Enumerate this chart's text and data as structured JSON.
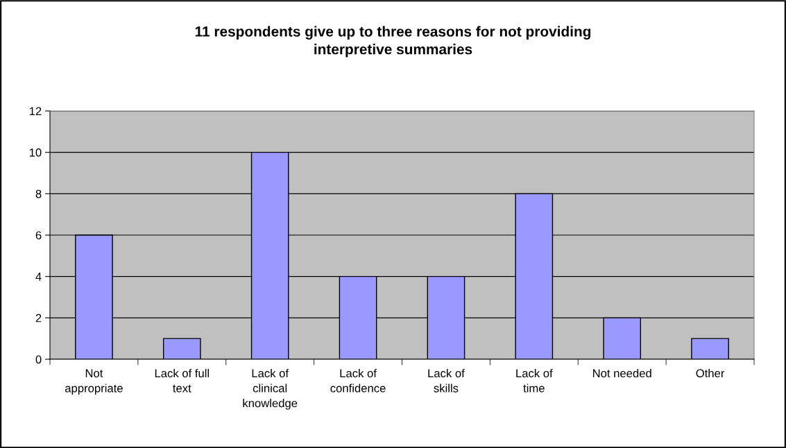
{
  "chart_data": {
    "type": "bar",
    "title": "11 respondents give up to three reasons for not providing\ninterpretive summaries",
    "categories": [
      "Not\nappropriate",
      "Lack of full\ntext",
      "Lack of\nclinical\nknowledge",
      "Lack of\nconfidence",
      "Lack of\nskills",
      "Lack of\ntime",
      "Not needed",
      "Other"
    ],
    "values": [
      6,
      1,
      10,
      4,
      4,
      8,
      2,
      1
    ],
    "color": "#9999ff",
    "ylim": [
      0,
      12
    ],
    "yticks": [
      0,
      2,
      4,
      6,
      8,
      10,
      12
    ],
    "grid": "y",
    "legend": false
  }
}
